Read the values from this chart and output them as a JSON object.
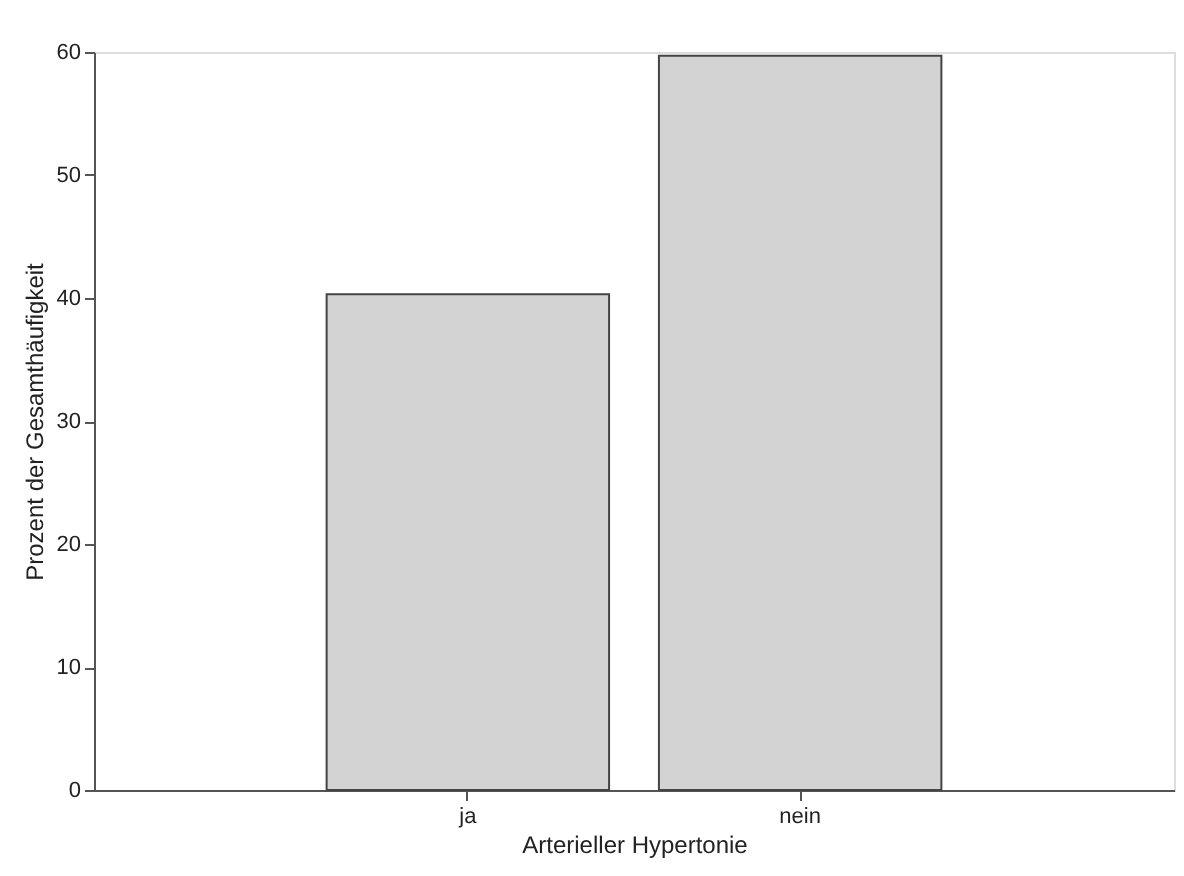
{
  "chart_data": {
    "type": "bar",
    "xlabel": "Arterieller Hypertonie",
    "ylabel": "Prozent der Gesamthäufigkeit",
    "categories": [
      "ja",
      "nein"
    ],
    "values": [
      40.3,
      59.7
    ],
    "color": "#d3d3d3",
    "ylim": [
      0,
      60
    ],
    "yticks": [
      0,
      10,
      20,
      30,
      40,
      50,
      60
    ],
    "grid": false
  }
}
